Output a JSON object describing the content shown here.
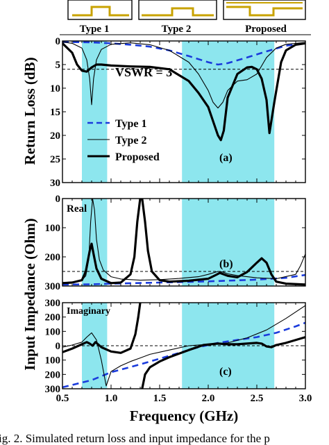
{
  "header": {
    "type_labels": [
      "Type 1",
      "Type 2",
      "Proposed"
    ]
  },
  "axes": {
    "y_label_a": "Return Loss (dB)",
    "y_label_bc": "Input Impedance (Ohm)",
    "x_label": "Frequency (GHz)",
    "x_ticks": [
      "0.5",
      "1.0",
      "1.5",
      "2.0",
      "2.5",
      "3.0"
    ]
  },
  "caption": "ig. 2. Simulated return loss and input impedance for the p",
  "colors": {
    "band_fill": "#8de6ee",
    "type1": "#1a3bdc",
    "type2": "#000000",
    "proposed": "#000000",
    "reference": "#000000"
  },
  "chart_data": [
    {
      "type": "line",
      "panel": "(a)",
      "xlabel": "Frequency (GHz)",
      "ylabel": "Return Loss (dB)",
      "xlim": [
        0.5,
        3.0
      ],
      "ylim": [
        0,
        30
      ],
      "y_inverted": true,
      "y_ticks": [
        "0",
        "5",
        "10",
        "15",
        "20",
        "25",
        "30"
      ],
      "shaded_bands": [
        [
          0.7,
          0.96
        ],
        [
          1.73,
          2.68
        ]
      ],
      "reference_line": {
        "y": 6,
        "label": "VSWR = 3"
      },
      "legend": [
        "Type 1",
        "Type 2",
        "Proposed"
      ],
      "panel_label": "(a)",
      "series": [
        {
          "name": "Type 1",
          "style": "dashed",
          "x": [
            0.5,
            0.8,
            1.0,
            1.2,
            1.4,
            1.6,
            1.8,
            2.0,
            2.1,
            2.2,
            2.4,
            2.6,
            2.8,
            3.0
          ],
          "y": [
            0.2,
            0.3,
            0.5,
            0.8,
            1.2,
            2.0,
            3.2,
            4.5,
            5.0,
            4.7,
            3.5,
            2.2,
            1.0,
            0.5
          ]
        },
        {
          "name": "Type 2",
          "style": "thin",
          "x": [
            0.5,
            0.6,
            0.7,
            0.75,
            0.78,
            0.8,
            0.82,
            0.85,
            0.9,
            1.0,
            1.2,
            1.4,
            1.6,
            1.8,
            1.9,
            2.0,
            2.05,
            2.1,
            2.15,
            2.2,
            2.3,
            2.4,
            2.5,
            2.6,
            2.7,
            2.8,
            3.0
          ],
          "y": [
            0.2,
            0.5,
            1.5,
            4.0,
            8.0,
            13.5,
            8.0,
            4.0,
            1.8,
            0.7,
            0.4,
            0.8,
            2.0,
            4.5,
            7.0,
            10.5,
            13.0,
            14.2,
            13.0,
            10.5,
            8.5,
            8.2,
            7.0,
            3.5,
            1.5,
            0.7,
            0.3
          ]
        },
        {
          "name": "Proposed",
          "style": "thick",
          "x": [
            0.5,
            0.6,
            0.65,
            0.7,
            0.75,
            0.8,
            0.85,
            0.9,
            1.0,
            1.2,
            1.4,
            1.6,
            1.8,
            1.9,
            2.0,
            2.05,
            2.1,
            2.13,
            2.16,
            2.2,
            2.3,
            2.4,
            2.45,
            2.5,
            2.55,
            2.6,
            2.63,
            2.68,
            2.75,
            2.8,
            2.9,
            3.0
          ],
          "y": [
            0.5,
            2.5,
            5.0,
            6.3,
            6.5,
            5.6,
            5.0,
            5.0,
            5.2,
            5.4,
            5.5,
            6.0,
            8.5,
            11.0,
            14.0,
            17.0,
            20.0,
            21.0,
            19.0,
            12.0,
            7.0,
            5.6,
            5.5,
            6.0,
            8.0,
            12.5,
            19.5,
            13.0,
            4.5,
            2.0,
            0.8,
            0.5
          ]
        }
      ]
    },
    {
      "type": "line",
      "panel": "(b)",
      "panel_title": "Real",
      "panel_label": "(b)",
      "xlim": [
        0.5,
        3.0
      ],
      "ylim": [
        0,
        300
      ],
      "y_ticks": [
        "0",
        "100",
        "200",
        "300"
      ],
      "shaded_bands": [
        [
          0.7,
          0.96
        ],
        [
          1.73,
          2.68
        ]
      ],
      "reference_line": {
        "y": 50
      },
      "series": [
        {
          "name": "Type 1",
          "style": "dashed",
          "x": [
            0.5,
            0.8,
            1.0,
            1.5,
            2.0,
            2.5,
            2.8,
            3.0
          ],
          "y": [
            5,
            6,
            8,
            12,
            16,
            22,
            28,
            38
          ]
        },
        {
          "name": "Type 2",
          "style": "thin",
          "x": [
            0.5,
            0.6,
            0.7,
            0.74,
            0.77,
            0.79,
            0.81,
            0.83,
            0.85,
            0.88,
            0.92,
            1.0,
            1.1,
            1.3,
            1.5,
            1.7,
            1.9,
            2.0,
            2.1,
            2.15,
            2.2,
            2.3,
            2.5,
            2.7,
            2.9,
            2.95,
            3.0
          ],
          "y": [
            12,
            14,
            20,
            35,
            90,
            220,
            300,
            260,
            160,
            90,
            55,
            32,
            24,
            20,
            22,
            26,
            32,
            40,
            50,
            48,
            42,
            36,
            28,
            25,
            40,
            70,
            110
          ]
        },
        {
          "name": "Proposed",
          "style": "thick",
          "x": [
            0.5,
            0.6,
            0.7,
            0.74,
            0.78,
            0.8,
            0.82,
            0.85,
            0.9,
            1.0,
            1.1,
            1.2,
            1.24,
            1.27,
            1.3,
            1.32,
            1.35,
            1.38,
            1.42,
            1.5,
            1.6,
            1.8,
            2.0,
            2.08,
            2.12,
            2.2,
            2.3,
            2.4,
            2.5,
            2.55,
            2.6,
            2.65,
            2.7,
            2.8,
            3.0
          ],
          "y": [
            10,
            12,
            20,
            50,
            120,
            145,
            110,
            60,
            25,
            10,
            12,
            40,
            100,
            220,
            300,
            300,
            220,
            120,
            50,
            20,
            15,
            18,
            25,
            38,
            45,
            35,
            30,
            48,
            80,
            95,
            80,
            40,
            15,
            8,
            5
          ]
        }
      ]
    },
    {
      "type": "line",
      "panel": "(c)",
      "panel_title": "Imaginary",
      "panel_label": "(c)",
      "xlim": [
        0.5,
        3.0
      ],
      "ylim": [
        -300,
        300
      ],
      "y_ticks": [
        "300",
        "200",
        "100",
        "0",
        "100",
        "200",
        "300"
      ],
      "shaded_bands": [
        [
          0.7,
          0.96
        ],
        [
          1.73,
          2.68
        ]
      ],
      "reference_line": {
        "y": 0
      },
      "series": [
        {
          "name": "Type 1",
          "style": "dashed",
          "x": [
            0.5,
            0.8,
            1.0,
            1.3,
            1.6,
            1.9,
            2.1,
            2.3,
            2.5,
            2.7,
            2.9,
            3.0
          ],
          "y": [
            -290,
            -240,
            -185,
            -130,
            -70,
            -10,
            20,
            40,
            60,
            90,
            135,
            160
          ]
        },
        {
          "name": "Type 2",
          "style": "thin",
          "x": [
            0.5,
            0.6,
            0.7,
            0.75,
            0.8,
            0.85,
            0.9,
            0.95,
            1.0,
            1.1,
            1.2,
            1.3,
            1.4,
            1.6,
            1.8,
            2.0,
            2.2,
            2.4,
            2.6,
            2.8,
            3.0
          ],
          "y": [
            -10,
            5,
            25,
            60,
            90,
            40,
            -100,
            -280,
            -180,
            -140,
            -110,
            -85,
            -60,
            -30,
            0,
            10,
            20,
            55,
            110,
            190,
            280
          ]
        },
        {
          "name": "Proposed",
          "style": "thick",
          "x": [
            0.5,
            0.6,
            0.7,
            0.75,
            0.78,
            0.81,
            0.84,
            0.9,
            1.0,
            1.1,
            1.2,
            1.25,
            1.28,
            1.3,
            1.32,
            1.35,
            1.4,
            1.5,
            1.6,
            1.8,
            1.95,
            2.1,
            2.2,
            2.3,
            2.4,
            2.5,
            2.55,
            2.6,
            2.65,
            2.7,
            2.8,
            3.0
          ],
          "y": [
            -45,
            -20,
            10,
            25,
            15,
            0,
            25,
            -10,
            -40,
            -50,
            -20,
            80,
            200,
            300,
            -300,
            -200,
            -150,
            -110,
            -80,
            -30,
            5,
            15,
            10,
            10,
            15,
            20,
            15,
            -5,
            -10,
            5,
            20,
            60
          ]
        }
      ]
    }
  ]
}
